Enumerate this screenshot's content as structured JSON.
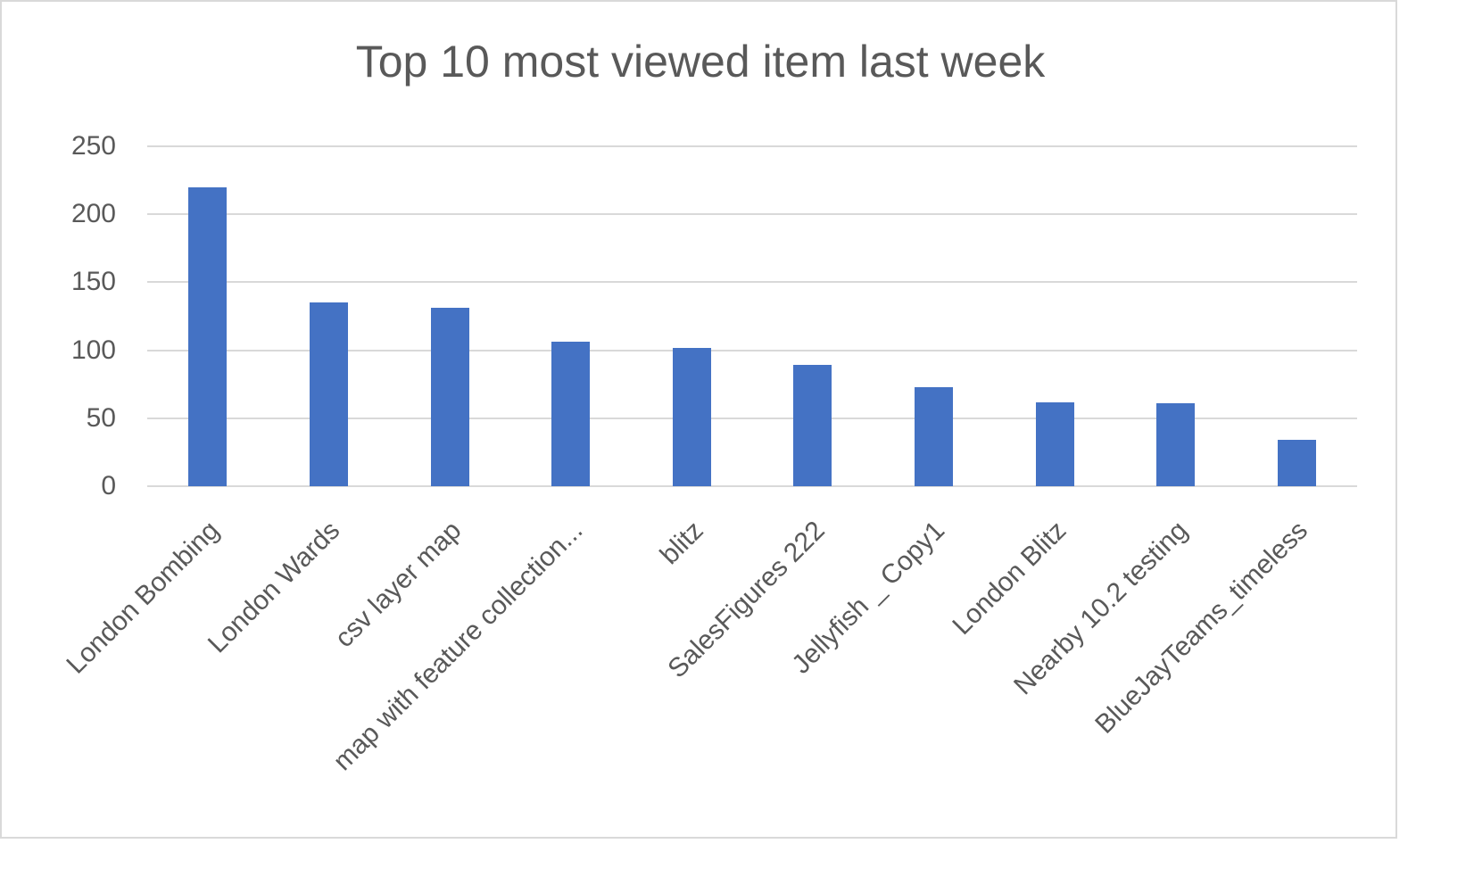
{
  "chart_data": {
    "type": "bar",
    "title": "Top 10 most viewed item last week",
    "xlabel": "",
    "ylabel": "",
    "ylim": [
      0,
      250
    ],
    "yticks": [
      "0",
      "50",
      "100",
      "150",
      "200",
      "250"
    ],
    "grid": true,
    "legend": "none",
    "bar_color": "#4472c4",
    "categories": [
      "London Bombing",
      "London Wards",
      "csv layer map",
      "map with feature collection...",
      "blitz",
      "SalesFigures 222",
      "Jellyfish _ Copy1",
      "London Blitz",
      "Nearby 10.2 testing",
      "BlueJayTeams_timeless"
    ],
    "values": [
      220,
      135,
      131,
      106,
      102,
      89,
      73,
      62,
      61,
      34
    ]
  }
}
